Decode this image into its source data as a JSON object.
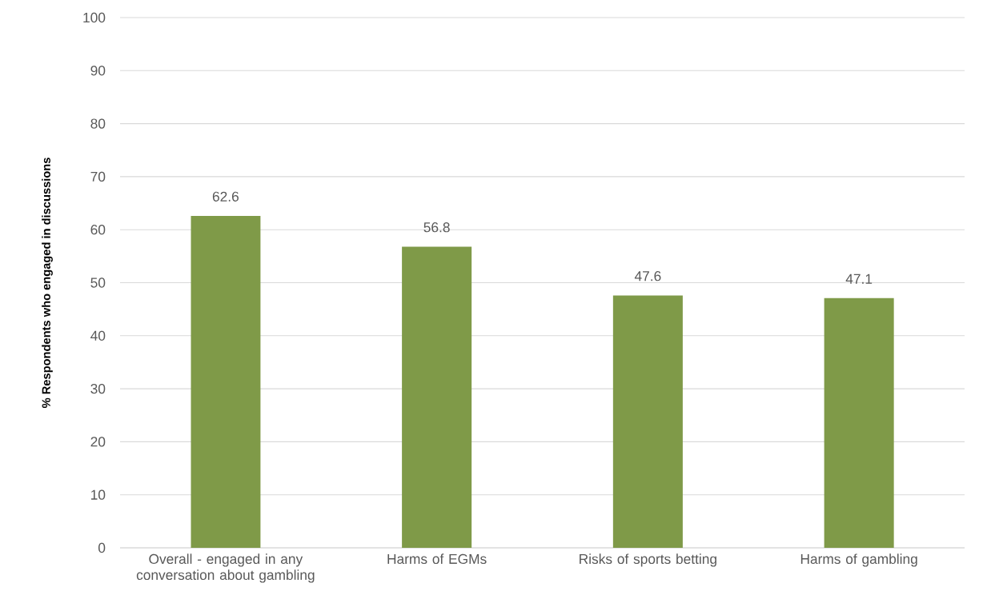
{
  "chart_data": {
    "type": "bar",
    "ylabel": "% Respondents who engaged in discussions",
    "categories": [
      "Overall - engaged in any conversation about gambling",
      "Harms of EGMs",
      "Risks of sports betting",
      "Harms of gambling"
    ],
    "values": [
      62.6,
      56.8,
      47.6,
      47.1
    ],
    "color": "#7f9a48",
    "ylim": [
      0,
      100
    ],
    "yticks": [
      0,
      10,
      20,
      30,
      40,
      50,
      60,
      70,
      80,
      90,
      100
    ],
    "grid": "y",
    "data_labels": true
  }
}
